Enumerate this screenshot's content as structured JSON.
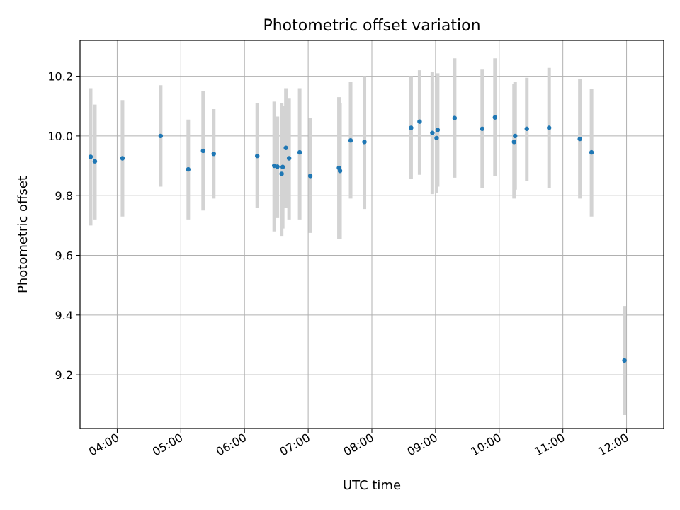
{
  "chart_data": {
    "type": "scatter",
    "title": "Photometric offset variation",
    "xlabel": "UTC time",
    "ylabel": "Photometric offset",
    "xlim": [
      "03:25",
      "12:35"
    ],
    "ylim": [
      9.02,
      10.32
    ],
    "grid": true,
    "x_ticks": [
      "04:00",
      "05:00",
      "06:00",
      "07:00",
      "08:00",
      "09:00",
      "10:00",
      "11:00",
      "12:00"
    ],
    "y_ticks": [
      9.2,
      9.4,
      9.6,
      9.8,
      10.0,
      10.2
    ],
    "colors": {
      "point": "#1f77b4",
      "errorbar": "#d3d3d3",
      "grid": "#b0b0b0"
    },
    "points": [
      {
        "x": "03:35",
        "y": 9.93,
        "yerr_low": 9.7,
        "yerr_high": 10.16
      },
      {
        "x": "03:39",
        "y": 9.915,
        "yerr_low": 9.72,
        "yerr_high": 10.105
      },
      {
        "x": "04:05",
        "y": 9.925,
        "yerr_low": 9.73,
        "yerr_high": 10.12
      },
      {
        "x": "04:41",
        "y": 10.0,
        "yerr_low": 9.83,
        "yerr_high": 10.17
      },
      {
        "x": "05:07",
        "y": 9.888,
        "yerr_low": 9.72,
        "yerr_high": 10.055
      },
      {
        "x": "05:21",
        "y": 9.95,
        "yerr_low": 9.75,
        "yerr_high": 10.15
      },
      {
        "x": "05:31",
        "y": 9.94,
        "yerr_low": 9.79,
        "yerr_high": 10.09
      },
      {
        "x": "06:12",
        "y": 9.933,
        "yerr_low": 9.76,
        "yerr_high": 10.11
      },
      {
        "x": "06:28",
        "y": 9.9,
        "yerr_low": 9.68,
        "yerr_high": 10.115
      },
      {
        "x": "06:31",
        "y": 9.897,
        "yerr_low": 9.725,
        "yerr_high": 10.065
      },
      {
        "x": "06:35",
        "y": 9.873,
        "yerr_low": 9.665,
        "yerr_high": 10.11
      },
      {
        "x": "06:36",
        "y": 9.896,
        "yerr_low": 9.69,
        "yerr_high": 10.1
      },
      {
        "x": "06:39",
        "y": 9.96,
        "yerr_low": 9.76,
        "yerr_high": 10.16
      },
      {
        "x": "06:42",
        "y": 9.925,
        "yerr_low": 9.72,
        "yerr_high": 10.125
      },
      {
        "x": "06:52",
        "y": 9.945,
        "yerr_low": 9.72,
        "yerr_high": 10.16
      },
      {
        "x": "07:02",
        "y": 9.866,
        "yerr_low": 9.675,
        "yerr_high": 10.06
      },
      {
        "x": "07:29",
        "y": 9.893,
        "yerr_low": 9.655,
        "yerr_high": 10.13
      },
      {
        "x": "07:30",
        "y": 9.883,
        "yerr_low": 9.655,
        "yerr_high": 10.11
      },
      {
        "x": "07:40",
        "y": 9.985,
        "yerr_low": 9.79,
        "yerr_high": 10.18
      },
      {
        "x": "07:53",
        "y": 9.98,
        "yerr_low": 9.755,
        "yerr_high": 10.2
      },
      {
        "x": "08:37",
        "y": 10.027,
        "yerr_low": 9.855,
        "yerr_high": 10.2
      },
      {
        "x": "08:45",
        "y": 10.048,
        "yerr_low": 9.87,
        "yerr_high": 10.22
      },
      {
        "x": "08:57",
        "y": 10.01,
        "yerr_low": 9.805,
        "yerr_high": 10.215
      },
      {
        "x": "09:01",
        "y": 9.993,
        "yerr_low": 9.81,
        "yerr_high": 10.18
      },
      {
        "x": "09:02",
        "y": 10.02,
        "yerr_low": 9.83,
        "yerr_high": 10.21
      },
      {
        "x": "09:18",
        "y": 10.06,
        "yerr_low": 9.86,
        "yerr_high": 10.26
      },
      {
        "x": "09:44",
        "y": 10.024,
        "yerr_low": 9.825,
        "yerr_high": 10.222
      },
      {
        "x": "09:56",
        "y": 10.062,
        "yerr_low": 9.865,
        "yerr_high": 10.26
      },
      {
        "x": "10:14",
        "y": 9.98,
        "yerr_low": 9.79,
        "yerr_high": 10.175
      },
      {
        "x": "10:15",
        "y": 10.0,
        "yerr_low": 9.82,
        "yerr_high": 10.18
      },
      {
        "x": "10:26",
        "y": 10.024,
        "yerr_low": 9.85,
        "yerr_high": 10.195
      },
      {
        "x": "10:47",
        "y": 10.027,
        "yerr_low": 9.825,
        "yerr_high": 10.228
      },
      {
        "x": "11:16",
        "y": 9.99,
        "yerr_low": 9.79,
        "yerr_high": 10.19
      },
      {
        "x": "11:27",
        "y": 9.945,
        "yerr_low": 9.73,
        "yerr_high": 10.158
      },
      {
        "x": "11:58",
        "y": 9.248,
        "yerr_low": 9.065,
        "yerr_high": 9.43
      }
    ]
  }
}
